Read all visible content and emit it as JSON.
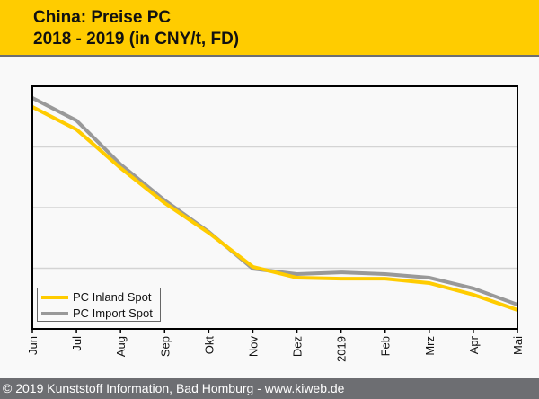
{
  "header": {
    "title_line1": "China: Preise PC",
    "title_line2": "2018 - 2019 (in CNY/t, FD)"
  },
  "footer": {
    "text": "© 2019 Kunststoff Information, Bad Homburg - www.kiweb.de"
  },
  "colors": {
    "header_bg": "#ffcc00",
    "footer_bg": "#6d6e72",
    "inland": "#ffcc00",
    "import": "#999999"
  },
  "chart_data": {
    "type": "line",
    "title": "China: Preise PC 2018 - 2019 (in CNY/t, FD)",
    "xlabel": "",
    "ylabel": "",
    "y_units": "relative (0-100 of plot height; no y tick labels shown)",
    "ylim": [
      0,
      100
    ],
    "y_gridlines": [
      25,
      50,
      75
    ],
    "grid": true,
    "legend_position": "bottom-left",
    "categories": [
      "Jun",
      "Jul",
      "Aug",
      "Sep",
      "Okt",
      "Nov",
      "Dez",
      "2019",
      "Feb",
      "Mrz",
      "Apr",
      "Mai"
    ],
    "series": [
      {
        "name": "PC Inland Spot",
        "color": "#ffcc00",
        "values": [
          91.5,
          82.2,
          66.3,
          51.9,
          39.6,
          25.6,
          21.1,
          20.7,
          20.7,
          18.9,
          14.1,
          7.8
        ]
      },
      {
        "name": "PC Import Spot",
        "color": "#999999",
        "values": [
          95.2,
          85.9,
          67.8,
          53.0,
          40.0,
          24.8,
          22.6,
          23.3,
          22.6,
          21.1,
          16.7,
          10.0
        ]
      }
    ]
  }
}
